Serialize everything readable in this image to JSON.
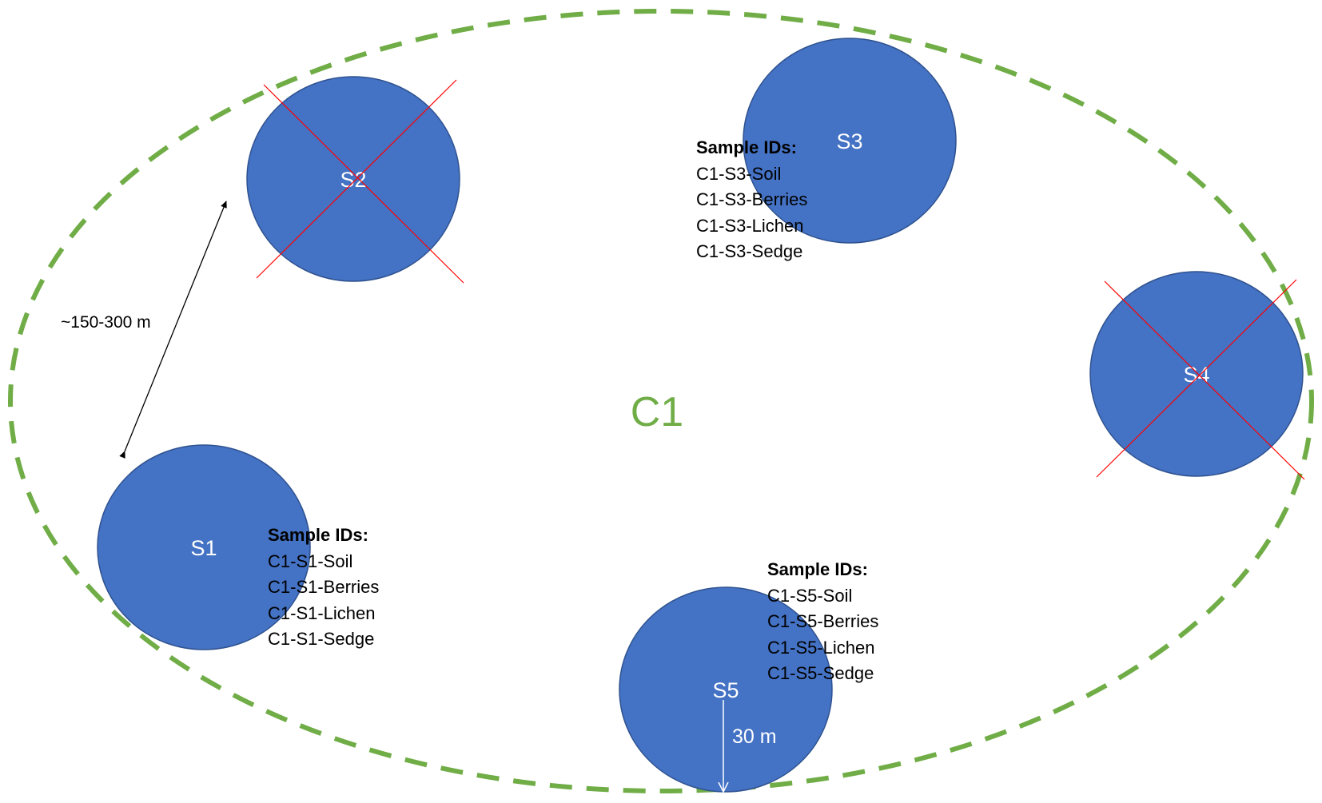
{
  "cluster": {
    "label": "C1",
    "boundary_color": "#70ad47"
  },
  "site_fill_color": "#4472c4",
  "excluded_mark_color": "#ff0000",
  "sites": [
    {
      "id": "s1",
      "label": "S1",
      "excluded": false
    },
    {
      "id": "s2",
      "label": "S2",
      "excluded": true
    },
    {
      "id": "s3",
      "label": "S3",
      "excluded": false
    },
    {
      "id": "s4",
      "label": "S4",
      "excluded": true
    },
    {
      "id": "s5",
      "label": "S5",
      "excluded": false
    }
  ],
  "sample_ids": {
    "s1": {
      "heading": "Sample IDs:",
      "items": [
        "C1-S1-Soil",
        "C1-S1-Berries",
        "C1-S1-Lichen",
        "C1-S1-Sedge"
      ]
    },
    "s3": {
      "heading": "Sample IDs:",
      "items": [
        "C1-S3-Soil",
        "C1-S3-Berries",
        "C1-S3-Lichen",
        "C1-S3-Sedge"
      ]
    },
    "s5": {
      "heading": "Sample IDs:",
      "items": [
        "C1-S5-Soil",
        "C1-S5-Berries",
        "C1-S5-Lichen",
        "C1-S5-Sedge"
      ]
    }
  },
  "spacing_label": "~150-300 m",
  "radius_label": "30 m"
}
